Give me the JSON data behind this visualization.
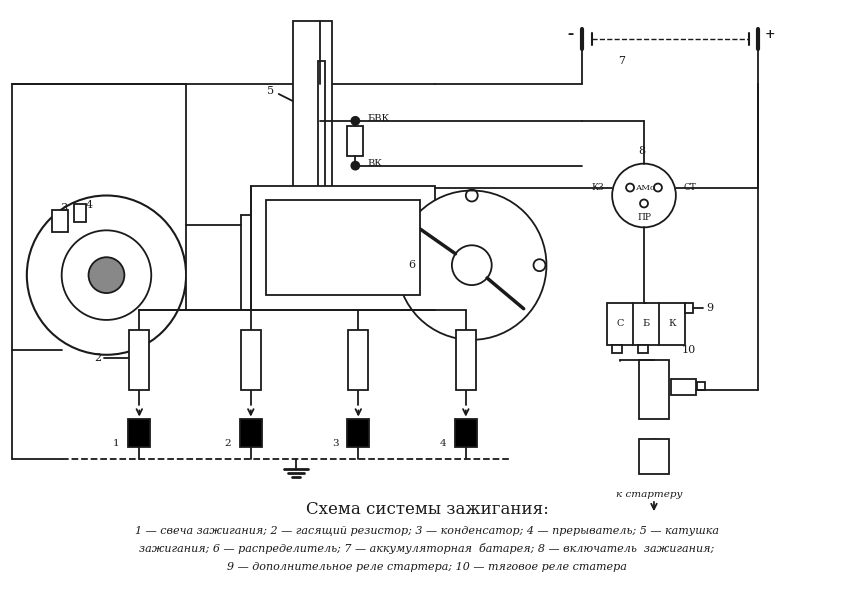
{
  "title": "Схема системы зажигания:",
  "caption_line1": "1 — свеча зажигания; 2 — гасящий резистор; 3 — конденсатор; 4 — прерыватель; 5 — катушка",
  "caption_line2": "зажигания; 6 — распределитель; 7 — аккумуляторная  батарея; 8 — включатель  зажигания;",
  "caption_line3": "9 — дополнительное реле стартера; 10 — тяговое реле статера",
  "bg_color": "#ffffff",
  "line_color": "#1a1a1a",
  "figsize": [
    8.54,
    6.11
  ],
  "dpi": 100
}
